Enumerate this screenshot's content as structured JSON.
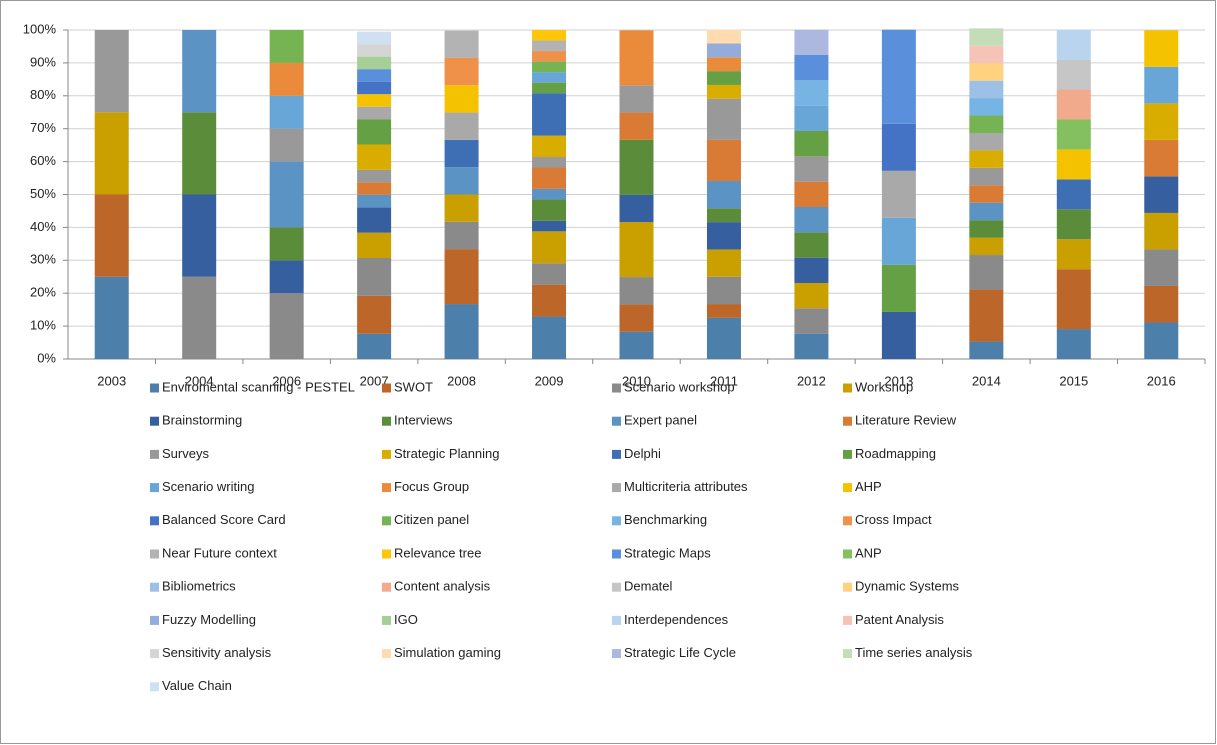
{
  "chart_data": {
    "type": "stacked_bar_percent",
    "categories": [
      "2003",
      "2004",
      "2006",
      "2007",
      "2008",
      "2009",
      "2010",
      "2011",
      "2012",
      "2013",
      "2014",
      "2015",
      "2016"
    ],
    "ylim": [
      0,
      100
    ],
    "yticks": [
      {
        "value": 0,
        "label": "0%"
      },
      {
        "value": 10,
        "label": "10%"
      },
      {
        "value": 20,
        "label": "20%"
      },
      {
        "value": 30,
        "label": "30%"
      },
      {
        "value": 40,
        "label": "40%"
      },
      {
        "value": 50,
        "label": "50%"
      },
      {
        "value": 60,
        "label": "60%"
      },
      {
        "value": 70,
        "label": "70%"
      },
      {
        "value": 80,
        "label": "80%"
      },
      {
        "value": 90,
        "label": "90%"
      },
      {
        "value": 100,
        "label": "100%"
      }
    ],
    "grid": true,
    "legend": "bottom",
    "series": [
      {
        "name": "Enviromental scanning - PESTEL",
        "color": "#4d7fab",
        "values": [
          25,
          null,
          null,
          7.7,
          16.7,
          12.9,
          8.3,
          12.5,
          7.7,
          null,
          5.3,
          9.1,
          11.1
        ]
      },
      {
        "name": "SWOT",
        "color": "#bd6629",
        "values": [
          25,
          null,
          null,
          11.5,
          16.7,
          9.7,
          8.3,
          4.2,
          null,
          null,
          15.8,
          18.2,
          11.1
        ]
      },
      {
        "name": "Scenario workshop",
        "color": "#8a8a8a",
        "values": [
          null,
          25,
          20,
          11.5,
          8.3,
          6.5,
          8.3,
          8.3,
          7.7,
          null,
          10.5,
          null,
          11.1
        ]
      },
      {
        "name": "Workshop",
        "color": "#c9a000",
        "values": [
          25,
          null,
          null,
          7.7,
          8.3,
          9.7,
          16.7,
          8.3,
          7.7,
          null,
          5.3,
          9.1,
          11.1
        ]
      },
      {
        "name": "Brainstorming",
        "color": "#355f9e",
        "values": [
          null,
          25,
          10,
          7.7,
          null,
          3.2,
          8.3,
          8.3,
          7.7,
          14.3,
          null,
          null,
          11.1
        ]
      },
      {
        "name": "Interviews",
        "color": "#5b8c3a",
        "values": [
          null,
          25,
          10,
          null,
          null,
          6.5,
          16.7,
          4.2,
          7.7,
          null,
          5.3,
          9.1,
          null
        ]
      },
      {
        "name": "Expert panel",
        "color": "#5b93c4",
        "values": [
          null,
          25,
          20,
          3.8,
          8.3,
          3.2,
          null,
          8.3,
          7.7,
          null,
          5.3,
          null,
          null
        ]
      },
      {
        "name": "Literature Review",
        "color": "#d97b35",
        "values": [
          null,
          null,
          null,
          3.8,
          null,
          6.5,
          8.3,
          12.5,
          7.7,
          null,
          5.3,
          null,
          11.1
        ]
      },
      {
        "name": "Surveys",
        "color": "#999999",
        "values": [
          25,
          null,
          10,
          3.8,
          null,
          3.2,
          8.3,
          12.5,
          7.7,
          null,
          5.3,
          null,
          null
        ]
      },
      {
        "name": "Strategic Planning",
        "color": "#d9ac00",
        "values": [
          null,
          null,
          null,
          7.7,
          null,
          6.5,
          null,
          4.2,
          null,
          null,
          5.3,
          null,
          11.1
        ]
      },
      {
        "name": "Delphi",
        "color": "#3e6fb5",
        "values": [
          null,
          null,
          null,
          null,
          8.3,
          12.9,
          null,
          null,
          null,
          null,
          null,
          9.1,
          null
        ]
      },
      {
        "name": "Roadmapping",
        "color": "#66a044",
        "values": [
          null,
          null,
          null,
          7.7,
          null,
          3.2,
          null,
          4.2,
          7.7,
          14.3,
          null,
          null,
          null
        ]
      },
      {
        "name": "Scenario writing",
        "color": "#69a6d8",
        "values": [
          null,
          null,
          10,
          null,
          null,
          3.2,
          null,
          null,
          7.7,
          14.3,
          null,
          null,
          11.1
        ]
      },
      {
        "name": "Focus Group",
        "color": "#e98b3a",
        "values": [
          null,
          null,
          10,
          null,
          null,
          null,
          16.7,
          4.2,
          null,
          null,
          null,
          null,
          null
        ]
      },
      {
        "name": "Multicriteria attributes",
        "color": "#a9a9a9",
        "values": [
          null,
          null,
          null,
          3.8,
          8.3,
          null,
          null,
          null,
          null,
          14.3,
          5.3,
          null,
          null
        ]
      },
      {
        "name": "AHP",
        "color": "#f5c200",
        "values": [
          null,
          null,
          null,
          3.8,
          8.3,
          null,
          null,
          null,
          null,
          null,
          null,
          9.1,
          11.1
        ]
      },
      {
        "name": "Balanced Score Card",
        "color": "#4472c4",
        "values": [
          null,
          null,
          null,
          3.8,
          null,
          null,
          null,
          null,
          null,
          14.3,
          null,
          null,
          null
        ]
      },
      {
        "name": "Citizen panel",
        "color": "#75b353",
        "values": [
          null,
          null,
          10,
          null,
          null,
          3.2,
          null,
          null,
          null,
          null,
          5.3,
          null,
          null
        ]
      },
      {
        "name": "Benchmarking",
        "color": "#76b4e4",
        "values": [
          null,
          null,
          null,
          null,
          null,
          null,
          null,
          null,
          7.7,
          null,
          5.3,
          null,
          null
        ]
      },
      {
        "name": "Cross Impact",
        "color": "#f0914a",
        "values": [
          null,
          null,
          null,
          null,
          8.3,
          3.2,
          null,
          null,
          null,
          null,
          null,
          null,
          null
        ]
      },
      {
        "name": "Near Future context",
        "color": "#b3b3b3",
        "values": [
          null,
          null,
          null,
          null,
          8.3,
          3.2,
          null,
          null,
          null,
          null,
          null,
          null,
          null
        ]
      },
      {
        "name": "Relevance tree",
        "color": "#ffc50b",
        "values": [
          null,
          null,
          null,
          null,
          null,
          3.2,
          null,
          null,
          null,
          null,
          null,
          null,
          null
        ]
      },
      {
        "name": "Strategic Maps",
        "color": "#5a8fdb",
        "values": [
          null,
          null,
          null,
          3.8,
          null,
          null,
          null,
          null,
          7.7,
          28.6,
          null,
          null,
          null
        ]
      },
      {
        "name": "ANP",
        "color": "#84c060",
        "values": [
          null,
          null,
          null,
          null,
          null,
          null,
          null,
          null,
          null,
          null,
          null,
          9.1,
          null
        ]
      },
      {
        "name": "Bibliometrics",
        "color": "#9cc0e6",
        "values": [
          null,
          null,
          null,
          null,
          null,
          null,
          null,
          null,
          null,
          null,
          5.3,
          null,
          null
        ]
      },
      {
        "name": "Content analysis",
        "color": "#f2aa8c",
        "values": [
          null,
          null,
          null,
          null,
          null,
          null,
          null,
          null,
          null,
          null,
          null,
          9.1,
          null
        ]
      },
      {
        "name": "Dematel",
        "color": "#c6c6c6",
        "values": [
          null,
          null,
          null,
          null,
          null,
          null,
          null,
          null,
          null,
          null,
          null,
          9.1,
          null
        ]
      },
      {
        "name": "Dynamic Systems",
        "color": "#ffd27f",
        "values": [
          null,
          null,
          null,
          null,
          null,
          null,
          null,
          null,
          null,
          null,
          5.3,
          null,
          null
        ]
      },
      {
        "name": "Fuzzy Modelling",
        "color": "#94acd9",
        "values": [
          null,
          null,
          null,
          null,
          null,
          null,
          null,
          4.2,
          null,
          null,
          null,
          null,
          null
        ]
      },
      {
        "name": "IGO",
        "color": "#a5cf94",
        "values": [
          null,
          null,
          null,
          3.8,
          null,
          null,
          null,
          null,
          null,
          null,
          null,
          null,
          null
        ]
      },
      {
        "name": "Interdependences",
        "color": "#b8d4ee",
        "values": [
          null,
          null,
          null,
          null,
          null,
          null,
          null,
          null,
          null,
          null,
          null,
          9.1,
          null
        ]
      },
      {
        "name": "Patent Analysis",
        "color": "#f6c4b6",
        "values": [
          null,
          null,
          null,
          null,
          null,
          null,
          null,
          null,
          null,
          null,
          5.3,
          null,
          null
        ]
      },
      {
        "name": "Sensitivity analysis",
        "color": "#d5d5d5",
        "values": [
          null,
          null,
          null,
          3.8,
          null,
          null,
          null,
          null,
          null,
          null,
          null,
          null,
          null
        ]
      },
      {
        "name": "Simulation gaming",
        "color": "#ffdcb0",
        "values": [
          null,
          null,
          null,
          null,
          null,
          null,
          null,
          4.2,
          null,
          null,
          null,
          null,
          null
        ]
      },
      {
        "name": "Strategic Life Cycle",
        "color": "#adb8e0",
        "values": [
          null,
          null,
          null,
          null,
          null,
          null,
          null,
          null,
          7.7,
          null,
          null,
          null,
          null
        ]
      },
      {
        "name": "Time series analysis",
        "color": "#c5dcb8",
        "values": [
          null,
          null,
          null,
          null,
          null,
          null,
          null,
          null,
          null,
          null,
          5.3,
          null,
          null
        ]
      },
      {
        "name": "Value Chain",
        "color": "#cfe0f3",
        "values": [
          null,
          null,
          null,
          3.8,
          null,
          null,
          null,
          null,
          null,
          null,
          null,
          null,
          null
        ]
      }
    ]
  }
}
